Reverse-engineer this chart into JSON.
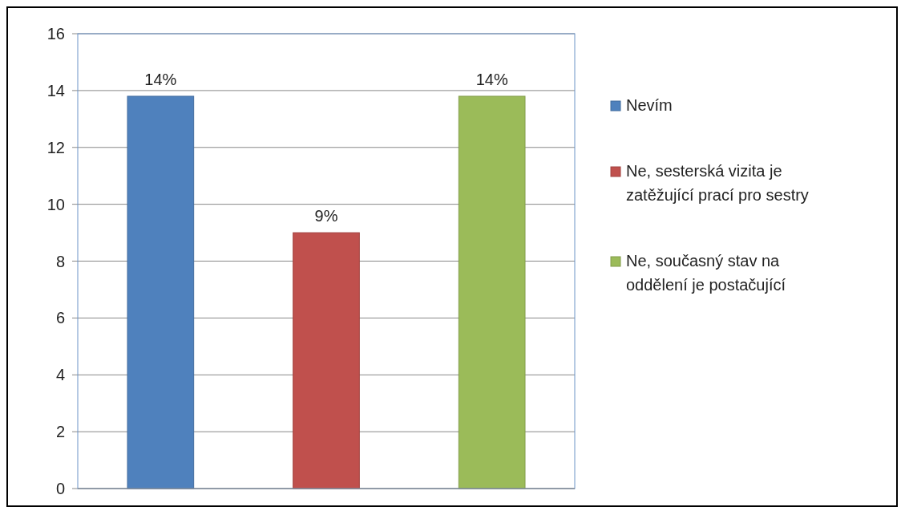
{
  "chart_data": {
    "type": "bar",
    "categories": [
      null
    ],
    "series": [
      {
        "name": "Nevím",
        "color": "#4f81bd",
        "values": [
          13.8
        ],
        "value_labels": [
          "14%"
        ]
      },
      {
        "name": "Ne, sesterská vizita je zatěžující prací pro sestry",
        "color": "#c0504d",
        "values": [
          9
        ],
        "value_labels": [
          "9%"
        ]
      },
      {
        "name": "Ne, současný stav na oddělení je postačující",
        "color": "#9bbb59",
        "values": [
          13.8
        ],
        "value_labels": [
          "14%"
        ]
      }
    ],
    "ylim": [
      0,
      16
    ],
    "yticks": [
      0,
      2,
      4,
      6,
      8,
      10,
      12,
      14,
      16
    ],
    "grid": "y",
    "legend": "right"
  }
}
